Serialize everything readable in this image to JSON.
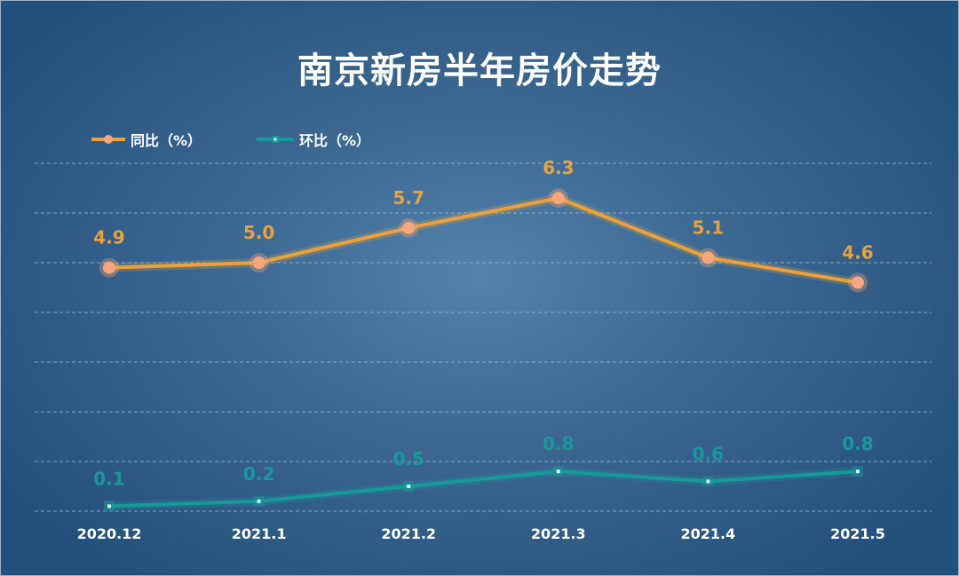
{
  "chart_data": {
    "type": "line",
    "title": "南京新房半年房价走势",
    "categories": [
      "2020.12",
      "2021.1",
      "2021.2",
      "2021.3",
      "2021.4",
      "2021.5"
    ],
    "series": [
      {
        "name": "同比（%）",
        "values": [
          4.9,
          5.0,
          5.7,
          6.3,
          5.1,
          4.6
        ],
        "labels": [
          "4.9",
          "5.0",
          "5.7",
          "6.3",
          "5.1",
          "4.6"
        ],
        "color": "#e9a23b",
        "marker_color": "#f5a77a"
      },
      {
        "name": "环比（%）",
        "values": [
          0.1,
          0.2,
          0.5,
          0.8,
          0.6,
          0.8
        ],
        "labels": [
          "0.1",
          "0.2",
          "0.5",
          "0.8",
          "0.6",
          "0.8"
        ],
        "color": "#17999a",
        "marker_color": "#d8f2f2"
      }
    ],
    "ylim": [
      0,
      7
    ],
    "grid": true,
    "legend": "top-left"
  }
}
